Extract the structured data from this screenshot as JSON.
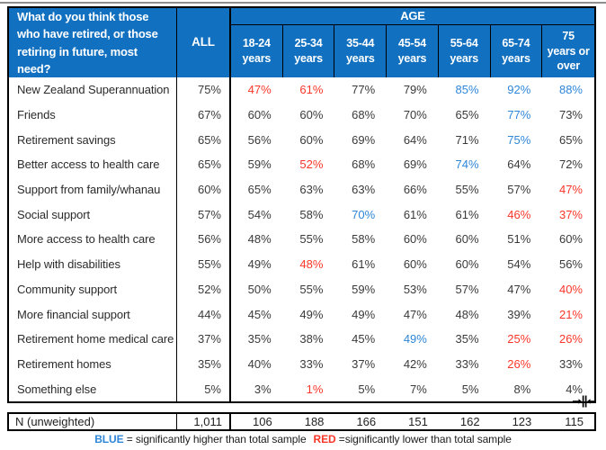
{
  "colors": {
    "header_bg": "#1170C0",
    "sig_higher_blue": "#2E86D8",
    "sig_lower_red": "#F9362A",
    "body_text": "#3A3A3A",
    "border": "#000000"
  },
  "chart_data": {
    "type": "table",
    "question": "What do you think those who have retired, or those retiring in future, most need?",
    "all_label": "ALL",
    "age_label": "AGE",
    "columns": [
      "18-24\nyears",
      "25-34\nyears",
      "35-44\nyears",
      "45-54\nyears",
      "55-64\nyears",
      "65-74\nyears",
      "75\nyears or\nover"
    ],
    "rows": [
      {
        "label": "New Zealand Superannuation",
        "all": "75%",
        "values": [
          "47%",
          "61%",
          "77%",
          "79%",
          "85%",
          "92%",
          "88%"
        ],
        "sig": [
          "lower",
          "lower",
          null,
          null,
          "higher",
          "higher",
          "higher"
        ]
      },
      {
        "label": "Friends",
        "all": "67%",
        "values": [
          "60%",
          "60%",
          "68%",
          "70%",
          "65%",
          "77%",
          "73%"
        ],
        "sig": [
          null,
          null,
          null,
          null,
          null,
          "higher",
          null
        ]
      },
      {
        "label": "Retirement savings",
        "all": "65%",
        "values": [
          "56%",
          "60%",
          "69%",
          "64%",
          "71%",
          "75%",
          "65%"
        ],
        "sig": [
          null,
          null,
          null,
          null,
          null,
          "higher",
          null
        ]
      },
      {
        "label": "Better access to health care",
        "all": "65%",
        "values": [
          "59%",
          "52%",
          "68%",
          "69%",
          "74%",
          "64%",
          "72%"
        ],
        "sig": [
          null,
          "lower",
          null,
          null,
          "higher",
          null,
          null
        ]
      },
      {
        "label": "Support from family/whanau",
        "all": "60%",
        "values": [
          "65%",
          "63%",
          "63%",
          "66%",
          "55%",
          "57%",
          "47%"
        ],
        "sig": [
          null,
          null,
          null,
          null,
          null,
          null,
          "lower"
        ]
      },
      {
        "label": "Social support",
        "all": "57%",
        "values": [
          "54%",
          "58%",
          "70%",
          "61%",
          "61%",
          "46%",
          "37%"
        ],
        "sig": [
          null,
          null,
          "higher",
          null,
          null,
          "lower",
          "lower"
        ]
      },
      {
        "label": "More access to health care",
        "all": "56%",
        "values": [
          "48%",
          "55%",
          "58%",
          "60%",
          "60%",
          "51%",
          "60%"
        ],
        "sig": [
          null,
          null,
          null,
          null,
          null,
          null,
          null
        ]
      },
      {
        "label": "Help with disabilities",
        "all": "55%",
        "values": [
          "49%",
          "48%",
          "61%",
          "60%",
          "60%",
          "54%",
          "56%"
        ],
        "sig": [
          null,
          "lower",
          null,
          null,
          null,
          null,
          null
        ]
      },
      {
        "label": "Community support",
        "all": "52%",
        "values": [
          "50%",
          "55%",
          "59%",
          "53%",
          "57%",
          "47%",
          "40%"
        ],
        "sig": [
          null,
          null,
          null,
          null,
          null,
          null,
          "lower"
        ]
      },
      {
        "label": "More financial support",
        "all": "44%",
        "values": [
          "45%",
          "49%",
          "49%",
          "47%",
          "48%",
          "39%",
          "21%"
        ],
        "sig": [
          null,
          null,
          null,
          null,
          null,
          null,
          "lower"
        ]
      },
      {
        "label": "Retirement home medical care",
        "all": "37%",
        "values": [
          "35%",
          "38%",
          "45%",
          "49%",
          "35%",
          "25%",
          "26%"
        ],
        "sig": [
          null,
          null,
          null,
          "higher",
          null,
          "lower",
          "lower"
        ]
      },
      {
        "label": "Retirement homes",
        "all": "35%",
        "values": [
          "40%",
          "33%",
          "37%",
          "42%",
          "33%",
          "26%",
          "33%"
        ],
        "sig": [
          null,
          null,
          null,
          null,
          null,
          "lower",
          null
        ]
      },
      {
        "label": "Something else",
        "all": "5%",
        "values": [
          "3%",
          "1%",
          "5%",
          "7%",
          "5%",
          "8%",
          "4%"
        ],
        "sig": [
          null,
          "lower",
          null,
          null,
          null,
          null,
          null
        ]
      }
    ],
    "n_row": {
      "label": "N (unweighted)",
      "all": "1,011",
      "values": [
        "106",
        "188",
        "166",
        "151",
        "162",
        "123",
        "115"
      ]
    },
    "legend": {
      "blue_word": "BLUE",
      "blue_text": " = significantly higher than total sample",
      "red_word": "RED",
      "red_text": " =significantly lower than total sample"
    }
  }
}
